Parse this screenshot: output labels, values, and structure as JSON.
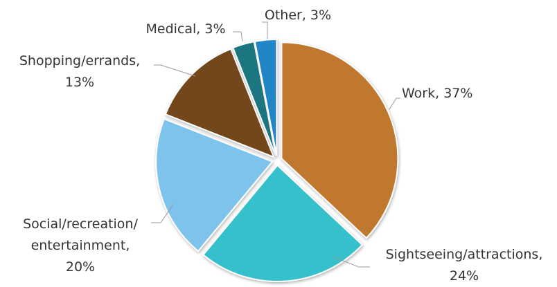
{
  "chart_data": {
    "type": "pie",
    "values": [
      37,
      24,
      20,
      13,
      3,
      3
    ],
    "value_labels": [
      [
        "Work, 37%"
      ],
      [
        "Sightseeing/attractions,",
        "24%"
      ],
      [
        "Social/recreation/",
        "entertainment,",
        "20%"
      ],
      [
        "Shopping/errands,",
        "13%"
      ],
      [
        "Medical, 3%"
      ],
      [
        "Other, 3%"
      ]
    ],
    "colors": [
      "#c0772e",
      "#35c0cc",
      "#7dc3ec",
      "#73461c",
      "#1f7680",
      "#2385c6"
    ]
  }
}
